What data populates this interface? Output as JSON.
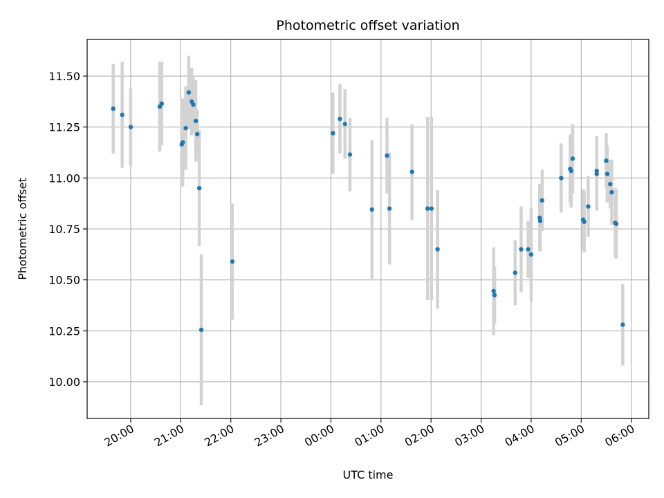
{
  "chart_data": {
    "type": "scatter",
    "title": "Photometric offset variation",
    "xlabel": "UTC time",
    "ylabel": "Photometric offset",
    "x_unit": "hours relative to 00:00 UTC",
    "xlim": [
      -4.87,
      6.35
    ],
    "ylim": [
      9.82,
      11.68
    ],
    "xticks": [
      -4,
      -3,
      -2,
      -1,
      0,
      1,
      2,
      3,
      4,
      5,
      6
    ],
    "xtick_labels": [
      "20:00",
      "21:00",
      "22:00",
      "23:00",
      "00:00",
      "01:00",
      "02:00",
      "03:00",
      "04:00",
      "05:00",
      "06:00"
    ],
    "yticks": [
      10.0,
      10.25,
      10.5,
      10.75,
      11.0,
      11.25,
      11.5
    ],
    "ytick_labels": [
      "10.00",
      "10.25",
      "10.50",
      "10.75",
      "11.00",
      "11.25",
      "11.50"
    ],
    "grid": true,
    "colors": {
      "point": "#1f77b4",
      "errorbar": "#d3d3d3",
      "grid": "#b0b0b0"
    },
    "series": [
      {
        "points": [
          {
            "x": -4.35,
            "y": 11.34,
            "err": 0.22
          },
          {
            "x": -4.17,
            "y": 11.31,
            "err": 0.26
          },
          {
            "x": -4.0,
            "y": 11.25,
            "err": 0.19
          },
          {
            "x": -3.42,
            "y": 11.35,
            "err": 0.22
          },
          {
            "x": -3.38,
            "y": 11.365,
            "err": 0.205
          },
          {
            "x": -2.98,
            "y": 11.165,
            "err": 0.21
          },
          {
            "x": -2.96,
            "y": 11.175,
            "err": 0.215
          },
          {
            "x": -2.9,
            "y": 11.245,
            "err": 0.205
          },
          {
            "x": -2.84,
            "y": 11.42,
            "err": 0.18
          },
          {
            "x": -2.78,
            "y": 11.375,
            "err": 0.165
          },
          {
            "x": -2.75,
            "y": 11.36,
            "err": 0.14
          },
          {
            "x": -2.7,
            "y": 11.28,
            "err": 0.2
          },
          {
            "x": -2.67,
            "y": 11.215,
            "err": 0.12
          },
          {
            "x": -2.63,
            "y": 10.95,
            "err": 0.285
          },
          {
            "x": -2.59,
            "y": 10.255,
            "err": 0.37
          },
          {
            "x": -1.97,
            "y": 10.59,
            "err": 0.285
          },
          {
            "x": 0.04,
            "y": 11.22,
            "err": 0.2
          },
          {
            "x": 0.18,
            "y": 11.29,
            "err": 0.17
          },
          {
            "x": 0.28,
            "y": 11.265,
            "err": 0.17
          },
          {
            "x": 0.38,
            "y": 11.115,
            "err": 0.18
          },
          {
            "x": 0.82,
            "y": 10.845,
            "err": 0.34
          },
          {
            "x": 1.12,
            "y": 11.11,
            "err": 0.185
          },
          {
            "x": 1.17,
            "y": 10.85,
            "err": 0.275
          },
          {
            "x": 1.62,
            "y": 11.03,
            "err": 0.235
          },
          {
            "x": 1.93,
            "y": 10.85,
            "err": 0.45
          },
          {
            "x": 2.01,
            "y": 10.85,
            "err": 0.45
          },
          {
            "x": 2.13,
            "y": 10.65,
            "err": 0.29
          },
          {
            "x": 3.25,
            "y": 10.445,
            "err": 0.215
          },
          {
            "x": 3.27,
            "y": 10.425,
            "err": 0.14
          },
          {
            "x": 3.68,
            "y": 10.535,
            "err": 0.16
          },
          {
            "x": 3.8,
            "y": 10.65,
            "err": 0.21
          },
          {
            "x": 3.94,
            "y": 10.65,
            "err": 0.14
          },
          {
            "x": 4.0,
            "y": 10.625,
            "err": 0.23
          },
          {
            "x": 4.17,
            "y": 10.805,
            "err": 0.165
          },
          {
            "x": 4.18,
            "y": 10.79,
            "err": 0.15
          },
          {
            "x": 4.22,
            "y": 10.89,
            "err": 0.15
          },
          {
            "x": 4.6,
            "y": 11.0,
            "err": 0.17
          },
          {
            "x": 4.78,
            "y": 11.045,
            "err": 0.165
          },
          {
            "x": 4.8,
            "y": 11.035,
            "err": 0.18
          },
          {
            "x": 4.83,
            "y": 11.095,
            "err": 0.17
          },
          {
            "x": 5.04,
            "y": 10.795,
            "err": 0.15
          },
          {
            "x": 5.06,
            "y": 10.785,
            "err": 0.15
          },
          {
            "x": 5.14,
            "y": 10.86,
            "err": 0.15
          },
          {
            "x": 5.31,
            "y": 11.035,
            "err": 0.17
          },
          {
            "x": 5.31,
            "y": 11.02,
            "err": 0.18
          },
          {
            "x": 5.5,
            "y": 11.085,
            "err": 0.135
          },
          {
            "x": 5.52,
            "y": 11.02,
            "err": 0.14
          },
          {
            "x": 5.58,
            "y": 10.97,
            "err": 0.12
          },
          {
            "x": 5.61,
            "y": 10.93,
            "err": 0.16
          },
          {
            "x": 5.68,
            "y": 10.78,
            "err": 0.17
          },
          {
            "x": 5.7,
            "y": 10.775,
            "err": 0.17
          },
          {
            "x": 5.83,
            "y": 10.28,
            "err": 0.2
          }
        ]
      }
    ]
  }
}
